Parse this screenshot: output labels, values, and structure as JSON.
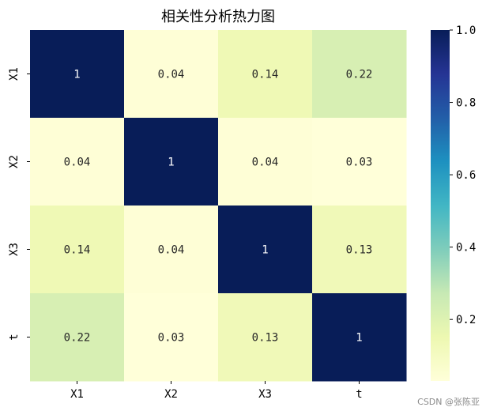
{
  "chart_data": {
    "type": "heatmap",
    "title": "相关性分析热力图",
    "x_categories": [
      "X1",
      "X2",
      "X3",
      "t"
    ],
    "y_categories": [
      "X1",
      "X2",
      "X3",
      "t"
    ],
    "values": [
      [
        1,
        0.04,
        0.14,
        0.22
      ],
      [
        0.04,
        1,
        0.04,
        0.03
      ],
      [
        0.14,
        0.04,
        1,
        0.13
      ],
      [
        0.22,
        0.03,
        0.13,
        1
      ]
    ],
    "cell_labels": [
      [
        "1",
        "0.04",
        "0.14",
        "0.22"
      ],
      [
        "0.04",
        "1",
        "0.04",
        "0.03"
      ],
      [
        "0.14",
        "0.04",
        "1",
        "0.13"
      ],
      [
        "0.22",
        "0.03",
        "0.13",
        "1"
      ]
    ],
    "colormap": "YlGnBu",
    "colorbar": {
      "range": [
        0.03,
        1.0
      ],
      "ticks": [
        0.2,
        0.4,
        0.6,
        0.8,
        1.0
      ],
      "tick_labels": [
        "0.2",
        "0.4",
        "0.6",
        "0.8",
        "1.0"
      ]
    },
    "annotation_colors": {
      "dark": "#262626",
      "light": "#ffffff"
    }
  },
  "watermark": "CSDN @张陈亚"
}
